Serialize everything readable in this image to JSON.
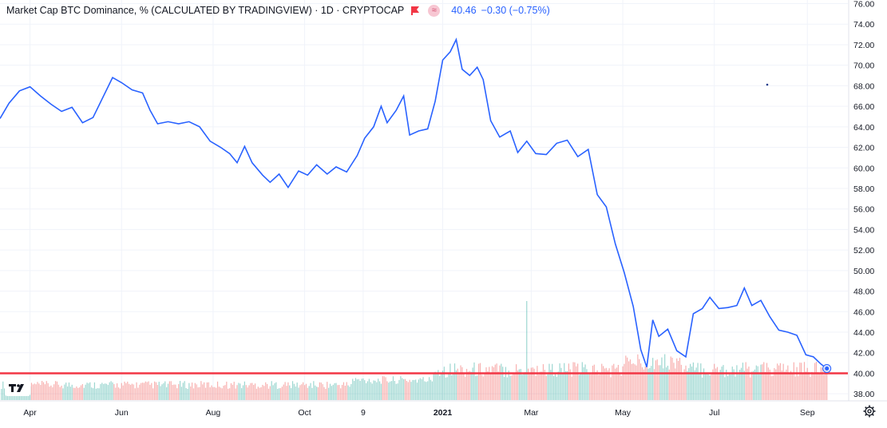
{
  "header": {
    "title": "Market Cap BTC Dominance, % (CALCULATED BY TRADINGVIEW) · 1D · CRYPTOCAP",
    "last_value": "40.46",
    "change": "−0.30 (−0.75%)"
  },
  "colors": {
    "line": "#2962ff",
    "support": "#f23645",
    "vol_up": "#26a69a",
    "vol_down": "#ef5350",
    "axis_text": "#131722"
  },
  "icons": {
    "flag": "flag-icon",
    "compare": "compare-icon",
    "logo": "tradingview-logo-icon",
    "settings": "gear-icon"
  },
  "chart_data": {
    "type": "line",
    "title": "Market Cap BTC Dominance, % (CALCULATED BY TRADINGVIEW) · 1D · CRYPTOCAP",
    "xlabel": "",
    "ylabel": "",
    "ylim": [
      37,
      76.5
    ],
    "yticks": [
      "76.00",
      "74.00",
      "72.00",
      "70.00",
      "68.00",
      "66.00",
      "64.00",
      "62.00",
      "60.00",
      "58.00",
      "56.00",
      "54.00",
      "52.00",
      "50.00",
      "48.00",
      "46.00",
      "44.00",
      "42.00",
      "40.00",
      "38.00"
    ],
    "xticks": [
      {
        "label": "Apr",
        "date": "2020-04-01"
      },
      {
        "label": "Jun",
        "date": "2020-06-01"
      },
      {
        "label": "Aug",
        "date": "2020-08-01"
      },
      {
        "label": "Oct",
        "date": "2020-10-01"
      },
      {
        "label": "9",
        "date": "2020-11-09"
      },
      {
        "label": "2021",
        "date": "2021-01-01"
      },
      {
        "label": "Mar",
        "date": "2021-03-01"
      },
      {
        "label": "May",
        "date": "2021-05-01"
      },
      {
        "label": "Jul",
        "date": "2021-07-01"
      },
      {
        "label": "Sep",
        "date": "2021-09-01"
      }
    ],
    "grid": true,
    "x_range": [
      "2020-03-12",
      "2021-09-28"
    ],
    "series": [
      {
        "points": [
          [
            "2020-03-12",
            64.8
          ],
          [
            "2020-03-18",
            66.3
          ],
          [
            "2020-03-25",
            67.5
          ],
          [
            "2020-04-01",
            67.9
          ],
          [
            "2020-04-08",
            67.0
          ],
          [
            "2020-04-15",
            66.2
          ],
          [
            "2020-04-22",
            65.5
          ],
          [
            "2020-04-29",
            65.9
          ],
          [
            "2020-05-06",
            64.4
          ],
          [
            "2020-05-13",
            64.9
          ],
          [
            "2020-05-20",
            67.0
          ],
          [
            "2020-05-26",
            68.8
          ],
          [
            "2020-06-01",
            68.3
          ],
          [
            "2020-06-08",
            67.6
          ],
          [
            "2020-06-15",
            67.3
          ],
          [
            "2020-06-20",
            65.6
          ],
          [
            "2020-06-25",
            64.3
          ],
          [
            "2020-07-02",
            64.5
          ],
          [
            "2020-07-09",
            64.3
          ],
          [
            "2020-07-16",
            64.5
          ],
          [
            "2020-07-23",
            64.0
          ],
          [
            "2020-07-30",
            62.6
          ],
          [
            "2020-08-06",
            62.0
          ],
          [
            "2020-08-12",
            61.4
          ],
          [
            "2020-08-17",
            60.5
          ],
          [
            "2020-08-22",
            62.1
          ],
          [
            "2020-08-27",
            60.5
          ],
          [
            "2020-09-03",
            59.3
          ],
          [
            "2020-09-08",
            58.6
          ],
          [
            "2020-09-14",
            59.4
          ],
          [
            "2020-09-20",
            58.1
          ],
          [
            "2020-09-27",
            59.7
          ],
          [
            "2020-10-03",
            59.3
          ],
          [
            "2020-10-09",
            60.3
          ],
          [
            "2020-10-16",
            59.4
          ],
          [
            "2020-10-22",
            60.1
          ],
          [
            "2020-10-29",
            59.6
          ],
          [
            "2020-11-05",
            61.2
          ],
          [
            "2020-11-10",
            62.9
          ],
          [
            "2020-11-16",
            64.0
          ],
          [
            "2020-11-21",
            66.0
          ],
          [
            "2020-11-25",
            64.4
          ],
          [
            "2020-12-01",
            65.6
          ],
          [
            "2020-12-06",
            67.0
          ],
          [
            "2020-12-10",
            63.2
          ],
          [
            "2020-12-16",
            63.6
          ],
          [
            "2020-12-22",
            63.8
          ],
          [
            "2020-12-27",
            66.5
          ],
          [
            "2021-01-01",
            70.5
          ],
          [
            "2021-01-06",
            71.3
          ],
          [
            "2021-01-10",
            72.5
          ],
          [
            "2021-01-14",
            69.6
          ],
          [
            "2021-01-19",
            69.0
          ],
          [
            "2021-01-24",
            69.8
          ],
          [
            "2021-01-28",
            68.6
          ],
          [
            "2021-02-02",
            64.6
          ],
          [
            "2021-02-08",
            63.0
          ],
          [
            "2021-02-15",
            63.6
          ],
          [
            "2021-02-20",
            61.5
          ],
          [
            "2021-02-26",
            62.6
          ],
          [
            "2021-03-04",
            61.4
          ],
          [
            "2021-03-11",
            61.3
          ],
          [
            "2021-03-18",
            62.4
          ],
          [
            "2021-03-25",
            62.7
          ],
          [
            "2021-04-01",
            61.1
          ],
          [
            "2021-04-08",
            61.8
          ],
          [
            "2021-04-14",
            57.4
          ],
          [
            "2021-04-20",
            56.2
          ],
          [
            "2021-04-26",
            52.6
          ],
          [
            "2021-05-02",
            49.8
          ],
          [
            "2021-05-08",
            46.5
          ],
          [
            "2021-05-13",
            42.3
          ],
          [
            "2021-05-17",
            40.6
          ],
          [
            "2021-05-21",
            45.2
          ],
          [
            "2021-05-25",
            43.6
          ],
          [
            "2021-05-31",
            44.3
          ],
          [
            "2021-06-06",
            42.2
          ],
          [
            "2021-06-12",
            41.6
          ],
          [
            "2021-06-17",
            45.8
          ],
          [
            "2021-06-23",
            46.3
          ],
          [
            "2021-06-28",
            47.4
          ],
          [
            "2021-07-04",
            46.3
          ],
          [
            "2021-07-10",
            46.4
          ],
          [
            "2021-07-16",
            46.6
          ],
          [
            "2021-07-21",
            48.3
          ],
          [
            "2021-07-26",
            46.6
          ],
          [
            "2021-08-01",
            47.1
          ],
          [
            "2021-08-07",
            45.5
          ],
          [
            "2021-08-13",
            44.2
          ],
          [
            "2021-08-19",
            44.0
          ],
          [
            "2021-08-25",
            43.7
          ],
          [
            "2021-08-31",
            41.8
          ],
          [
            "2021-09-05",
            41.6
          ],
          [
            "2021-09-10",
            40.9
          ],
          [
            "2021-09-14",
            40.46
          ]
        ]
      }
    ],
    "support_line": 40.0,
    "last_value": 40.46,
    "annotations": []
  }
}
